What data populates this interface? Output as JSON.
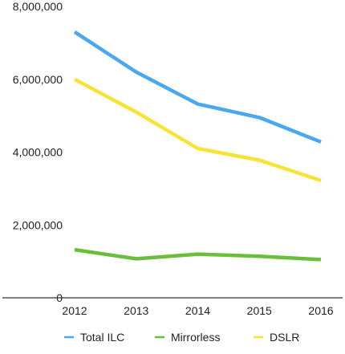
{
  "chart_data": {
    "type": "line",
    "title": "",
    "xlabel": "",
    "ylabel": "",
    "categories": [
      "2012",
      "2013",
      "2014",
      "2015",
      "2016"
    ],
    "y_tick_labels": [
      "0",
      "2,000,000",
      "4,000,000",
      "6,000,000",
      "8,000,000"
    ],
    "y_tick_values": [
      0,
      2000000,
      4000000,
      6000000,
      8000000
    ],
    "ylim": [
      0,
      8000000
    ],
    "grid": false,
    "legend_position": "bottom",
    "series": [
      {
        "name": "Total ILC",
        "color": "#4aa8f0",
        "values": [
          7300000,
          6200000,
          5320000,
          4950000,
          4280000
        ]
      },
      {
        "name": "Mirrorless",
        "color": "#6abf3a",
        "values": [
          1320000,
          1070000,
          1200000,
          1140000,
          1050000
        ]
      },
      {
        "name": "DSLR",
        "color": "#f7e236",
        "values": [
          6000000,
          5100000,
          4100000,
          3780000,
          3220000
        ]
      }
    ]
  }
}
